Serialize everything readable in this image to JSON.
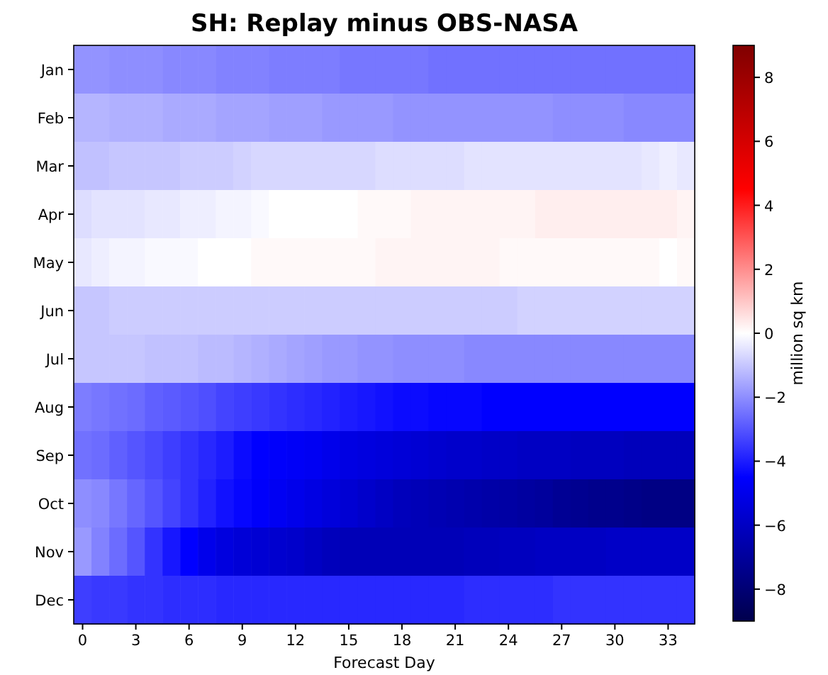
{
  "chart_data": {
    "type": "heatmap",
    "title": "SH: Replay minus OBS-NASA",
    "xlabel": "Forecast Day",
    "clabel": "million sq km",
    "categories": [
      "0",
      null,
      null,
      "3",
      null,
      null,
      "6",
      null,
      null,
      "9",
      null,
      null,
      "12",
      null,
      null,
      "15",
      null,
      null,
      "18",
      null,
      null,
      "21",
      null,
      null,
      "24",
      null,
      null,
      "27",
      null,
      null,
      "30",
      null,
      null,
      "33",
      null
    ],
    "y_categories": [
      "Jan",
      "Feb",
      "Mar",
      "Apr",
      "May",
      "Jun",
      "Jul",
      "Aug",
      "Sep",
      "Oct",
      "Nov",
      "Dec"
    ],
    "cells": [
      [
        -1.9,
        -1.9,
        -2.0,
        -2.0,
        -2.0,
        -2.1,
        -2.1,
        -2.1,
        -2.2,
        -2.2,
        -2.2,
        -2.3,
        -2.3,
        -2.3,
        -2.3,
        -2.4,
        -2.4,
        -2.4,
        -2.4,
        -2.4,
        -2.5,
        -2.5,
        -2.5,
        -2.5,
        -2.5,
        -2.5,
        -2.5,
        -2.5,
        -2.5,
        -2.5,
        -2.5,
        -2.5,
        -2.5,
        -2.5,
        -2.5
      ],
      [
        -1.3,
        -1.3,
        -1.4,
        -1.4,
        -1.4,
        -1.5,
        -1.5,
        -1.5,
        -1.6,
        -1.6,
        -1.6,
        -1.7,
        -1.7,
        -1.7,
        -1.8,
        -1.8,
        -1.8,
        -1.8,
        -1.9,
        -1.9,
        -1.9,
        -1.9,
        -1.9,
        -1.9,
        -1.9,
        -1.9,
        -1.9,
        -2.0,
        -2.0,
        -2.0,
        -2.0,
        -2.1,
        -2.1,
        -2.1,
        -2.1
      ],
      [
        -1.1,
        -1.1,
        -1.0,
        -1.0,
        -1.0,
        -1.0,
        -0.9,
        -0.9,
        -0.9,
        -0.8,
        -0.7,
        -0.7,
        -0.7,
        -0.7,
        -0.7,
        -0.7,
        -0.7,
        -0.6,
        -0.6,
        -0.6,
        -0.6,
        -0.6,
        -0.5,
        -0.5,
        -0.5,
        -0.5,
        -0.5,
        -0.5,
        -0.5,
        -0.5,
        -0.5,
        -0.5,
        -0.4,
        -0.3,
        -0.4
      ],
      [
        -0.6,
        -0.5,
        -0.5,
        -0.5,
        -0.4,
        -0.4,
        -0.3,
        -0.3,
        -0.2,
        -0.2,
        -0.1,
        0,
        0,
        0,
        0,
        0,
        0.1,
        0.1,
        0.1,
        0.2,
        0.2,
        0.2,
        0.2,
        0.2,
        0.2,
        0.2,
        0.3,
        0.3,
        0.3,
        0.3,
        0.3,
        0.3,
        0.3,
        0.3,
        0.2
      ],
      [
        -0.4,
        -0.3,
        -0.2,
        -0.2,
        -0.1,
        -0.1,
        -0.1,
        0,
        0,
        0,
        0.1,
        0.1,
        0.1,
        0.1,
        0.1,
        0.1,
        0.1,
        0.2,
        0.2,
        0.2,
        0.2,
        0.2,
        0.2,
        0.2,
        0.1,
        0.1,
        0.1,
        0.1,
        0.1,
        0.1,
        0.1,
        0.1,
        0.1,
        0,
        0.1
      ],
      [
        -1.0,
        -1.0,
        -0.9,
        -0.9,
        -0.9,
        -0.9,
        -0.9,
        -0.9,
        -0.9,
        -0.9,
        -0.9,
        -0.9,
        -0.9,
        -0.9,
        -0.9,
        -0.9,
        -0.9,
        -0.9,
        -0.9,
        -0.9,
        -0.9,
        -0.9,
        -0.9,
        -0.9,
        -0.9,
        -0.8,
        -0.8,
        -0.8,
        -0.8,
        -0.8,
        -0.8,
        -0.8,
        -0.8,
        -0.8,
        -0.8
      ],
      [
        -1.0,
        -1.0,
        -1.0,
        -1.0,
        -1.1,
        -1.1,
        -1.1,
        -1.2,
        -1.2,
        -1.3,
        -1.4,
        -1.5,
        -1.6,
        -1.7,
        -1.8,
        -1.8,
        -1.9,
        -1.9,
        -2.0,
        -2.0,
        -2.0,
        -2.0,
        -2.1,
        -2.1,
        -2.1,
        -2.1,
        -2.1,
        -2.1,
        -2.1,
        -2.1,
        -2.1,
        -2.1,
        -2.1,
        -2.1,
        -2.1
      ],
      [
        -2.3,
        -2.4,
        -2.5,
        -2.6,
        -2.8,
        -2.9,
        -3.0,
        -3.1,
        -3.3,
        -3.4,
        -3.5,
        -3.6,
        -3.7,
        -3.8,
        -3.9,
        -4.0,
        -4.1,
        -4.2,
        -4.3,
        -4.3,
        -4.4,
        -4.4,
        -4.4,
        -4.5,
        -4.5,
        -4.5,
        -4.5,
        -4.5,
        -4.5,
        -4.5,
        -4.5,
        -4.5,
        -4.5,
        -4.5,
        -4.5
      ],
      [
        -2.5,
        -2.6,
        -2.8,
        -3.0,
        -3.2,
        -3.4,
        -3.6,
        -3.8,
        -4.0,
        -4.3,
        -4.5,
        -4.6,
        -4.7,
        -4.8,
        -5.0,
        -5.2,
        -5.3,
        -5.4,
        -5.5,
        -5.6,
        -5.7,
        -5.8,
        -5.8,
        -5.9,
        -5.9,
        -6.0,
        -6.0,
        -6.0,
        -6.1,
        -6.1,
        -6.1,
        -6.2,
        -6.2,
        -6.2,
        -6.2
      ],
      [
        -2.0,
        -2.1,
        -2.4,
        -2.7,
        -3.0,
        -3.3,
        -3.6,
        -3.9,
        -4.2,
        -4.4,
        -4.6,
        -4.8,
        -5.0,
        -5.2,
        -5.4,
        -5.6,
        -5.8,
        -6.0,
        -6.2,
        -6.3,
        -6.4,
        -6.5,
        -6.6,
        -6.7,
        -6.8,
        -6.9,
        -7.0,
        -7.2,
        -7.3,
        -7.4,
        -7.4,
        -7.5,
        -7.6,
        -7.6,
        -7.6
      ],
      [
        -1.8,
        -2.2,
        -2.6,
        -3.0,
        -3.6,
        -4.1,
        -4.5,
        -5.0,
        -5.3,
        -5.5,
        -5.6,
        -5.7,
        -5.8,
        -6.0,
        -6.2,
        -6.3,
        -6.3,
        -6.3,
        -6.3,
        -6.3,
        -6.3,
        -6.3,
        -6.2,
        -6.2,
        -6.1,
        -6.1,
        -6.0,
        -6.0,
        -6.0,
        -6.0,
        -5.9,
        -5.9,
        -5.9,
        -5.9,
        -5.9
      ],
      [
        -3.4,
        -3.5,
        -3.5,
        -3.6,
        -3.6,
        -3.7,
        -3.7,
        -3.7,
        -3.8,
        -3.8,
        -3.8,
        -3.8,
        -3.8,
        -3.8,
        -3.8,
        -3.8,
        -3.8,
        -3.8,
        -3.8,
        -3.8,
        -3.8,
        -3.8,
        -3.7,
        -3.7,
        -3.7,
        -3.7,
        -3.7,
        -3.6,
        -3.6,
        -3.6,
        -3.6,
        -3.6,
        -3.6,
        -3.6,
        -3.6
      ]
    ],
    "clim": [
      -9,
      9
    ],
    "cticks": [
      {
        "value": -8,
        "label": "−8"
      },
      {
        "value": -6,
        "label": "−6"
      },
      {
        "value": -4,
        "label": "−4"
      },
      {
        "value": -2,
        "label": "−2"
      },
      0,
      2,
      4,
      6,
      8
    ]
  }
}
